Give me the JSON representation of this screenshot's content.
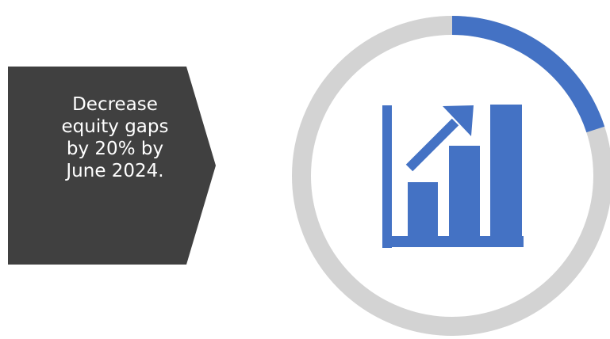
{
  "goal": {
    "text": "Decrease\nequity gaps\nby 20% by\nJune 2024."
  },
  "progress": {
    "fraction": 0.2
  },
  "icon": {
    "name": "growth-chart-icon"
  },
  "colors": {
    "banner_fill": "#404040",
    "ring_track": "#d3d3d3",
    "ring_progress": "#4472c4",
    "icon": "#4472c4"
  }
}
